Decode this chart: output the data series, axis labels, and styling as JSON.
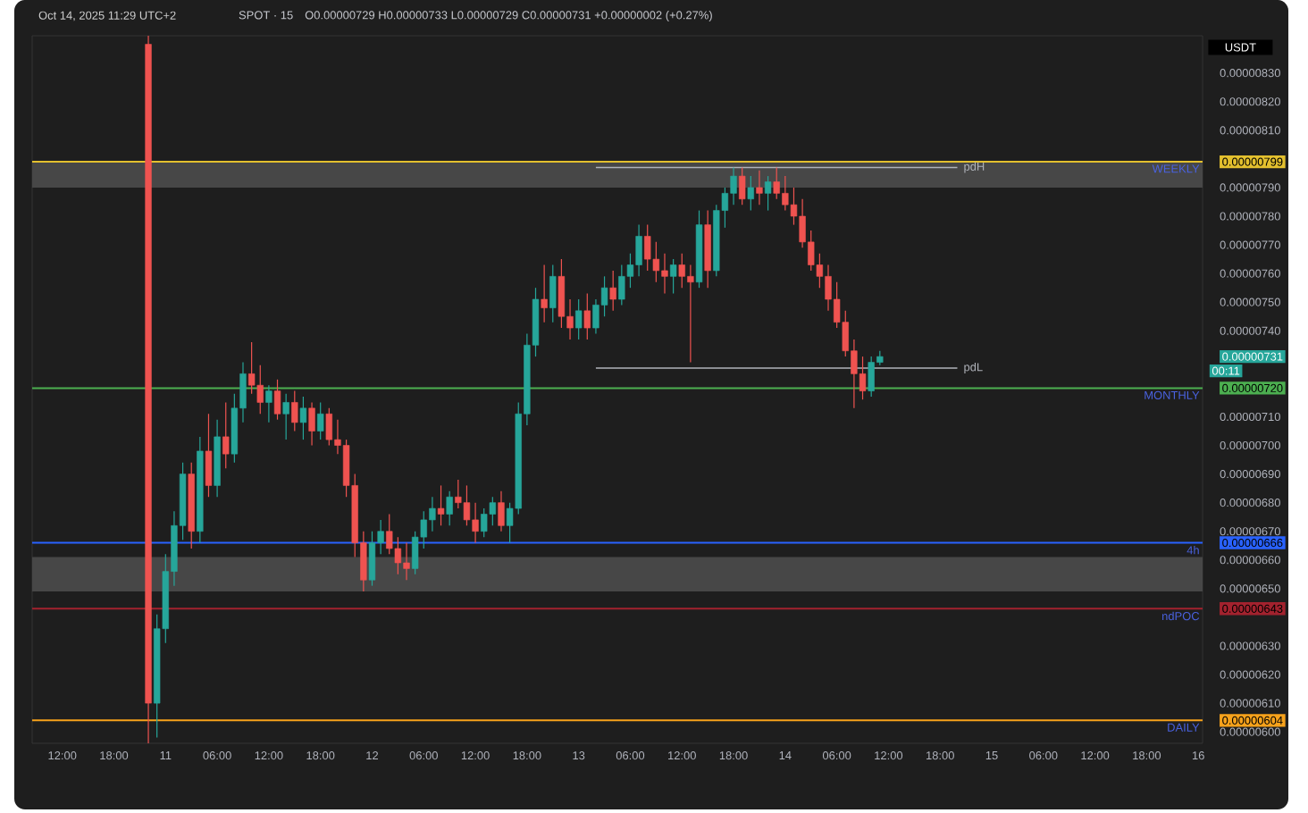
{
  "chart_data": {
    "type": "candlestick",
    "title": "SPOT · 15",
    "subtitle": "O0.00000729 H0.00000733 L0.00000729 C0.00000731 +0.00000002 (+0.27%)",
    "ylabel": "USDT",
    "annotations": [
      "Oct 14, 2025 11:29 UTC+2",
      "00:11"
    ],
    "x": [
      "2025-10-10T22:00",
      "2025-10-10T23:00",
      "2025-10-11T00:00",
      "2025-10-11T01:00",
      "2025-10-11T02:00",
      "2025-10-11T03:00",
      "2025-10-11T04:00",
      "2025-10-11T05:00",
      "2025-10-11T06:00",
      "2025-10-11T07:00",
      "2025-10-11T08:00",
      "2025-10-11T09:00",
      "2025-10-11T10:00",
      "2025-10-11T11:00",
      "2025-10-11T12:00",
      "2025-10-11T13:00",
      "2025-10-11T14:00",
      "2025-10-11T15:00",
      "2025-10-11T16:00",
      "2025-10-11T17:00",
      "2025-10-11T18:00",
      "2025-10-11T19:00",
      "2025-10-11T20:00",
      "2025-10-11T21:00",
      "2025-10-11T22:00",
      "2025-10-11T23:00",
      "2025-10-12T00:00",
      "2025-10-12T01:00",
      "2025-10-12T02:00",
      "2025-10-12T03:00",
      "2025-10-12T04:00",
      "2025-10-12T05:00",
      "2025-10-12T06:00",
      "2025-10-12T07:00",
      "2025-10-12T08:00",
      "2025-10-12T09:00",
      "2025-10-12T10:00",
      "2025-10-12T11:00",
      "2025-10-12T12:00",
      "2025-10-12T13:00",
      "2025-10-12T14:00",
      "2025-10-12T15:00",
      "2025-10-12T16:00",
      "2025-10-12T17:00",
      "2025-10-12T18:00",
      "2025-10-12T19:00",
      "2025-10-12T20:00",
      "2025-10-12T21:00",
      "2025-10-12T22:00",
      "2025-10-12T23:00",
      "2025-10-13T00:00",
      "2025-10-13T01:00",
      "2025-10-13T02:00",
      "2025-10-13T03:00",
      "2025-10-13T04:00",
      "2025-10-13T05:00",
      "2025-10-13T06:00",
      "2025-10-13T07:00",
      "2025-10-13T08:00",
      "2025-10-13T09:00",
      "2025-10-13T10:00",
      "2025-10-13T11:00",
      "2025-10-13T12:00",
      "2025-10-13T13:00",
      "2025-10-13T14:00",
      "2025-10-13T15:00",
      "2025-10-13T16:00",
      "2025-10-13T17:00",
      "2025-10-13T18:00",
      "2025-10-13T19:00",
      "2025-10-13T20:00",
      "2025-10-13T21:00",
      "2025-10-13T22:00",
      "2025-10-13T23:00",
      "2025-10-14T00:00",
      "2025-10-14T01:00",
      "2025-10-14T02:00",
      "2025-10-14T03:00",
      "2025-10-14T04:00",
      "2025-10-14T05:00",
      "2025-10-14T06:00",
      "2025-10-14T07:00",
      "2025-10-14T08:00",
      "2025-10-14T09:00",
      "2025-10-14T10:00",
      "2025-10-14T11:00"
    ],
    "ohlc": [
      [
        8.4e-06,
        8.43e-06,
        5.96e-06,
        6.1e-06
      ],
      [
        6.1e-06,
        6.41e-06,
        5.98e-06,
        6.36e-06
      ],
      [
        6.36e-06,
        6.62e-06,
        6.31e-06,
        6.56e-06
      ],
      [
        6.56e-06,
        6.77e-06,
        6.51e-06,
        6.72e-06
      ],
      [
        6.72e-06,
        6.94e-06,
        6.67e-06,
        6.9e-06
      ],
      [
        6.9e-06,
        6.94e-06,
        6.64e-06,
        6.7e-06
      ],
      [
        6.7e-06,
        7.03e-06,
        6.66e-06,
        6.98e-06
      ],
      [
        6.98e-06,
        7.11e-06,
        6.82e-06,
        6.86e-06
      ],
      [
        6.86e-06,
        7.09e-06,
        6.82e-06,
        7.03e-06
      ],
      [
        7.03e-06,
        7.15e-06,
        6.92e-06,
        6.97e-06
      ],
      [
        6.97e-06,
        7.18e-06,
        6.94e-06,
        7.13e-06
      ],
      [
        7.13e-06,
        7.29e-06,
        7.08e-06,
        7.25e-06
      ],
      [
        7.25e-06,
        7.36e-06,
        7.18e-06,
        7.21e-06
      ],
      [
        7.21e-06,
        7.28e-06,
        7.11e-06,
        7.15e-06
      ],
      [
        7.15e-06,
        7.21e-06,
        7.08e-06,
        7.19e-06
      ],
      [
        7.19e-06,
        7.23e-06,
        7.09e-06,
        7.11e-06
      ],
      [
        7.11e-06,
        7.18e-06,
        7.02e-06,
        7.15e-06
      ],
      [
        7.15e-06,
        7.19e-06,
        7.05e-06,
        7.08e-06
      ],
      [
        7.08e-06,
        7.17e-06,
        7.02e-06,
        7.13e-06
      ],
      [
        7.13e-06,
        7.15e-06,
        7e-06,
        7.05e-06
      ],
      [
        7.05e-06,
        7.15e-06,
        7.02e-06,
        7.11e-06
      ],
      [
        7.11e-06,
        7.13e-06,
        7e-06,
        7.02e-06
      ],
      [
        7.02e-06,
        7.09e-06,
        6.97e-06,
        7e-06
      ],
      [
        7e-06,
        7.02e-06,
        6.82e-06,
        6.86e-06
      ],
      [
        6.86e-06,
        6.9e-06,
        6.61e-06,
        6.66e-06
      ],
      [
        6.66e-06,
        6.7e-06,
        6.49e-06,
        6.53e-06
      ],
      [
        6.53e-06,
        6.7e-06,
        6.51e-06,
        6.66e-06
      ],
      [
        6.66e-06,
        6.74e-06,
        6.62e-06,
        6.7e-06
      ],
      [
        6.7e-06,
        6.76e-06,
        6.62e-06,
        6.64e-06
      ],
      [
        6.64e-06,
        6.68e-06,
        6.55e-06,
        6.59e-06
      ],
      [
        6.59e-06,
        6.66e-06,
        6.53e-06,
        6.57e-06
      ],
      [
        6.57e-06,
        6.7e-06,
        6.55e-06,
        6.68e-06
      ],
      [
        6.68e-06,
        6.77e-06,
        6.64e-06,
        6.74e-06
      ],
      [
        6.74e-06,
        6.82e-06,
        6.7e-06,
        6.78e-06
      ],
      [
        6.78e-06,
        6.86e-06,
        6.72e-06,
        6.76e-06
      ],
      [
        6.76e-06,
        6.84e-06,
        6.72e-06,
        6.82e-06
      ],
      [
        6.82e-06,
        6.88e-06,
        6.78e-06,
        6.8e-06
      ],
      [
        6.8e-06,
        6.86e-06,
        6.72e-06,
        6.74e-06
      ],
      [
        6.74e-06,
        6.8e-06,
        6.66e-06,
        6.7e-06
      ],
      [
        6.7e-06,
        6.78e-06,
        6.68e-06,
        6.76e-06
      ],
      [
        6.76e-06,
        6.82e-06,
        6.72e-06,
        6.8e-06
      ],
      [
        6.8e-06,
        6.84e-06,
        6.7e-06,
        6.72e-06
      ],
      [
        6.72e-06,
        6.8e-06,
        6.66e-06,
        6.78e-06
      ],
      [
        6.78e-06,
        7.15e-06,
        6.76e-06,
        7.11e-06
      ],
      [
        7.11e-06,
        7.39e-06,
        7.07e-06,
        7.35e-06
      ],
      [
        7.35e-06,
        7.55e-06,
        7.31e-06,
        7.51e-06
      ],
      [
        7.51e-06,
        7.63e-06,
        7.43e-06,
        7.48e-06
      ],
      [
        7.48e-06,
        7.63e-06,
        7.43e-06,
        7.59e-06
      ],
      [
        7.59e-06,
        7.65e-06,
        7.41e-06,
        7.45e-06
      ],
      [
        7.45e-06,
        7.51e-06,
        7.37e-06,
        7.41e-06
      ],
      [
        7.41e-06,
        7.51e-06,
        7.37e-06,
        7.47e-06
      ],
      [
        7.47e-06,
        7.53e-06,
        7.37e-06,
        7.41e-06
      ],
      [
        7.41e-06,
        7.51e-06,
        7.39e-06,
        7.49e-06
      ],
      [
        7.49e-06,
        7.59e-06,
        7.45e-06,
        7.55e-06
      ],
      [
        7.55e-06,
        7.61e-06,
        7.47e-06,
        7.51e-06
      ],
      [
        7.51e-06,
        7.63e-06,
        7.49e-06,
        7.59e-06
      ],
      [
        7.59e-06,
        7.67e-06,
        7.55e-06,
        7.63e-06
      ],
      [
        7.63e-06,
        7.77e-06,
        7.59e-06,
        7.73e-06
      ],
      [
        7.73e-06,
        7.77e-06,
        7.61e-06,
        7.65e-06
      ],
      [
        7.65e-06,
        7.71e-06,
        7.57e-06,
        7.61e-06
      ],
      [
        7.61e-06,
        7.67e-06,
        7.53e-06,
        7.59e-06
      ],
      [
        7.59e-06,
        7.65e-06,
        7.53e-06,
        7.63e-06
      ],
      [
        7.63e-06,
        7.67e-06,
        7.55e-06,
        7.59e-06
      ],
      [
        7.59e-06,
        7.63e-06,
        7.29e-06,
        7.57e-06
      ],
      [
        7.57e-06,
        7.82e-06,
        7.55e-06,
        7.77e-06
      ],
      [
        7.77e-06,
        7.82e-06,
        7.55e-06,
        7.61e-06
      ],
      [
        7.61e-06,
        7.84e-06,
        7.59e-06,
        7.82e-06
      ],
      [
        7.82e-06,
        7.9e-06,
        7.76e-06,
        7.88e-06
      ],
      [
        7.88e-06,
        7.97e-06,
        7.84e-06,
        7.94e-06
      ],
      [
        7.94e-06,
        7.97e-06,
        7.84e-06,
        7.86e-06
      ],
      [
        7.86e-06,
        7.94e-06,
        7.82e-06,
        7.9e-06
      ],
      [
        7.9e-06,
        7.96e-06,
        7.84e-06,
        7.88e-06
      ],
      [
        7.88e-06,
        7.94e-06,
        7.82e-06,
        7.92e-06
      ],
      [
        7.92e-06,
        7.97e-06,
        7.86e-06,
        7.88e-06
      ],
      [
        7.88e-06,
        7.94e-06,
        7.82e-06,
        7.84e-06
      ],
      [
        7.84e-06,
        7.9e-06,
        7.77e-06,
        7.8e-06
      ],
      [
        7.8e-06,
        7.86e-06,
        7.69e-06,
        7.71e-06
      ],
      [
        7.71e-06,
        7.75e-06,
        7.61e-06,
        7.63e-06
      ],
      [
        7.63e-06,
        7.67e-06,
        7.55e-06,
        7.59e-06
      ],
      [
        7.59e-06,
        7.63e-06,
        7.47e-06,
        7.51e-06
      ],
      [
        7.51e-06,
        7.57e-06,
        7.41e-06,
        7.43e-06
      ],
      [
        7.43e-06,
        7.47e-06,
        7.31e-06,
        7.33e-06
      ],
      [
        7.33e-06,
        7.37e-06,
        7.13e-06,
        7.25e-06
      ],
      [
        7.25e-06,
        7.31e-06,
        7.16e-06,
        7.19e-06
      ],
      [
        7.19e-06,
        7.31e-06,
        7.17e-06,
        7.29e-06
      ],
      [
        7.29e-06,
        7.33e-06,
        7.28e-06,
        7.31e-06
      ]
    ],
    "colors": [
      "#ef5350",
      "#26a69a",
      "#26a69a",
      "#26a69a",
      "#26a69a",
      "#ef5350",
      "#26a69a",
      "#ef5350",
      "#26a69a",
      "#ef5350",
      "#26a69a",
      "#26a69a",
      "#ef5350",
      "#ef5350",
      "#26a69a",
      "#ef5350",
      "#26a69a",
      "#ef5350",
      "#26a69a",
      "#ef5350",
      "#26a69a",
      "#ef5350",
      "#ef5350",
      "#ef5350",
      "#ef5350",
      "#ef5350",
      "#26a69a",
      "#26a69a",
      "#ef5350",
      "#ef5350",
      "#ef5350",
      "#26a69a",
      "#26a69a",
      "#26a69a",
      "#ef5350",
      "#26a69a",
      "#ef5350",
      "#ef5350",
      "#ef5350",
      "#26a69a",
      "#26a69a",
      "#ef5350",
      "#26a69a",
      "#26a69a",
      "#26a69a",
      "#26a69a",
      "#ef5350",
      "#26a69a",
      "#ef5350",
      "#ef5350",
      "#26a69a",
      "#ef5350",
      "#26a69a",
      "#26a69a",
      "#ef5350",
      "#26a69a",
      "#26a69a",
      "#26a69a",
      "#ef5350",
      "#ef5350",
      "#ef5350",
      "#26a69a",
      "#ef5350",
      "#ef5350",
      "#26a69a",
      "#ef5350",
      "#26a69a",
      "#26a69a",
      "#26a69a",
      "#ef5350",
      "#26a69a",
      "#ef5350",
      "#26a69a",
      "#ef5350",
      "#ef5350",
      "#ef5350",
      "#ef5350",
      "#ef5350",
      "#ef5350",
      "#ef5350",
      "#ef5350",
      "#ef5350",
      "#ef5350",
      "#ef5350",
      "#26a69a",
      "#26a69a"
    ],
    "series": [
      {
        "type": "line",
        "name": "pdH",
        "color": "#b0b3ba",
        "x": [
          "2025-10-13T02:00",
          "2025-10-14T20:00"
        ],
        "values": [
          7.97e-06,
          7.97e-06
        ]
      },
      {
        "type": "line",
        "name": "pdL",
        "color": "#b0b3ba",
        "x": [
          "2025-10-13T02:00",
          "2025-10-14T20:00"
        ],
        "values": [
          7.27e-06,
          7.27e-06
        ]
      }
    ],
    "ref_lines": [
      {
        "axis": "y",
        "value": 7.99e-06,
        "label": "WEEKLY",
        "color": "#e3c02e"
      },
      {
        "axis": "y",
        "value": 7.2e-06,
        "label": "MONTHLY",
        "color": "#4caf50"
      },
      {
        "axis": "y",
        "value": 6.66e-06,
        "label": "4h",
        "color": "#2962ff"
      },
      {
        "axis": "y",
        "value": 6.43e-06,
        "label": "ndPOC",
        "color": "#a3222e"
      },
      {
        "axis": "y",
        "value": 6.04e-06,
        "label": "DAILY",
        "color": "#f7a21b"
      }
    ],
    "bands": [
      {
        "axis": "y",
        "from": 7.9e-06,
        "to": 7.99e-06,
        "color": "#474747"
      },
      {
        "axis": "y",
        "from": 6.49e-06,
        "to": 6.61e-06,
        "color": "#474747"
      }
    ],
    "xlim": [
      "2025-10-10T08:30",
      "2025-10-16T00:30"
    ],
    "ylim": [
      5.96e-06,
      8.43e-06
    ],
    "xticks": [
      {
        "value": "2025-10-10T12:00",
        "label": "12:00"
      },
      {
        "value": "2025-10-10T18:00",
        "label": "18:00"
      },
      {
        "value": "2025-10-11T00:00",
        "label": "11"
      },
      {
        "value": "2025-10-11T06:00",
        "label": "06:00"
      },
      {
        "value": "2025-10-11T12:00",
        "label": "12:00"
      },
      {
        "value": "2025-10-11T18:00",
        "label": "18:00"
      },
      {
        "value": "2025-10-12T00:00",
        "label": "12"
      },
      {
        "value": "2025-10-12T06:00",
        "label": "06:00"
      },
      {
        "value": "2025-10-12T12:00",
        "label": "12:00"
      },
      {
        "value": "2025-10-12T18:00",
        "label": "18:00"
      },
      {
        "value": "2025-10-13T00:00",
        "label": "13"
      },
      {
        "value": "2025-10-13T06:00",
        "label": "06:00"
      },
      {
        "value": "2025-10-13T12:00",
        "label": "12:00"
      },
      {
        "value": "2025-10-13T18:00",
        "label": "18:00"
      },
      {
        "value": "2025-10-14T00:00",
        "label": "14"
      },
      {
        "value": "2025-10-14T06:00",
        "label": "06:00"
      },
      {
        "value": "2025-10-14T12:00",
        "label": "12:00"
      },
      {
        "value": "2025-10-14T18:00",
        "label": "18:00"
      },
      {
        "value": "2025-10-15T00:00",
        "label": "15"
      },
      {
        "value": "2025-10-15T06:00",
        "label": "06:00"
      },
      {
        "value": "2025-10-15T12:00",
        "label": "12:00"
      },
      {
        "value": "2025-10-15T18:00",
        "label": "18:00"
      },
      {
        "value": "2025-10-16T00:00",
        "label": "16"
      }
    ],
    "yticks": [
      {
        "value": 6e-06,
        "label": "0.00000600"
      },
      {
        "value": 6.04e-06,
        "label": "0.00000604"
      },
      {
        "value": 6.1e-06,
        "label": "0.00000610"
      },
      {
        "value": 6.2e-06,
        "label": "0.00000620"
      },
      {
        "value": 6.3e-06,
        "label": "0.00000630"
      },
      {
        "value": 6.43e-06,
        "label": "0.00000643"
      },
      {
        "value": 6.5e-06,
        "label": "0.00000650"
      },
      {
        "value": 6.6e-06,
        "label": "0.00000660"
      },
      {
        "value": 6.66e-06,
        "label": "0.00000666"
      },
      {
        "value": 6.7e-06,
        "label": "0.00000670"
      },
      {
        "value": 6.8e-06,
        "label": "0.00000680"
      },
      {
        "value": 6.9e-06,
        "label": "0.00000690"
      },
      {
        "value": 7e-06,
        "label": "0.00000700"
      },
      {
        "value": 7.1e-06,
        "label": "0.00000710"
      },
      {
        "value": 7.2e-06,
        "label": "0.00000720"
      },
      {
        "value": 7.31e-06,
        "label": "0.00000731"
      },
      {
        "value": 7.4e-06,
        "label": "0.00000740"
      },
      {
        "value": 7.5e-06,
        "label": "0.00000750"
      },
      {
        "value": 7.6e-06,
        "label": "0.00000760"
      },
      {
        "value": 7.7e-06,
        "label": "0.00000770"
      },
      {
        "value": 7.8e-06,
        "label": "0.00000780"
      },
      {
        "value": 7.9e-06,
        "label": "0.00000790"
      },
      {
        "value": 7.99e-06,
        "label": "0.00000799"
      },
      {
        "value": 8.1e-06,
        "label": "0.00000810"
      },
      {
        "value": 8.2e-06,
        "label": "0.00000820"
      },
      {
        "value": 8.3e-06,
        "label": "0.00000830"
      }
    ]
  }
}
